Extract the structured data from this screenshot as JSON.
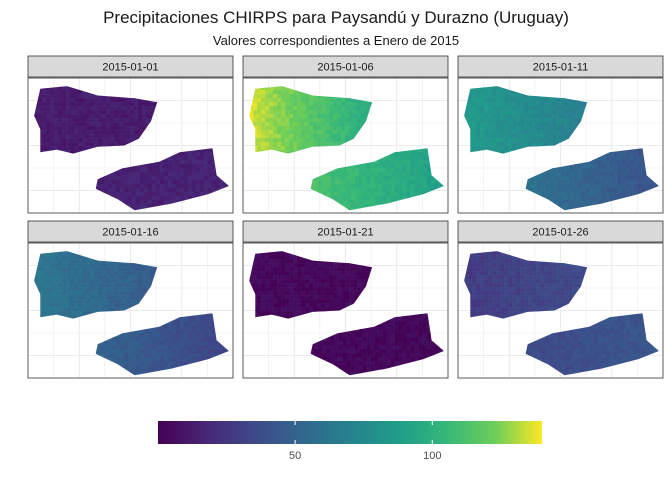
{
  "chart_data": {
    "type": "heatmap",
    "title": "Precipitaciones CHIRPS para Paysandú y Durazno (Uruguay)",
    "subtitle": "Valores correspondientes a Enero de 2015",
    "facets": [
      {
        "label": "2015-01-01",
        "west_value": 12,
        "east_value": 15,
        "gradient": "none"
      },
      {
        "label": "2015-01-06",
        "west_value": 115,
        "east_value": 100,
        "gradient": "west-high"
      },
      {
        "label": "2015-01-11",
        "west_value": 85,
        "east_value": 58,
        "gradient": "east-low"
      },
      {
        "label": "2015-01-16",
        "west_value": 62,
        "east_value": 50,
        "gradient": "east-low"
      },
      {
        "label": "2015-01-21",
        "west_value": 3,
        "east_value": 3,
        "gradient": "none"
      },
      {
        "label": "2015-01-26",
        "west_value": 28,
        "east_value": 35,
        "gradient": "east-high"
      }
    ],
    "legend": {
      "min": 0,
      "max": 140,
      "ticks": [
        50,
        100
      ],
      "tick_labels": [
        "50",
        "100"
      ],
      "colormap": "viridis",
      "placement": "bottom"
    },
    "grid": true,
    "colors": {
      "strip_fill": "#d9d9d9",
      "strip_border": "#333333",
      "panel_border": "#333333",
      "grid": "#ebebeb"
    }
  }
}
